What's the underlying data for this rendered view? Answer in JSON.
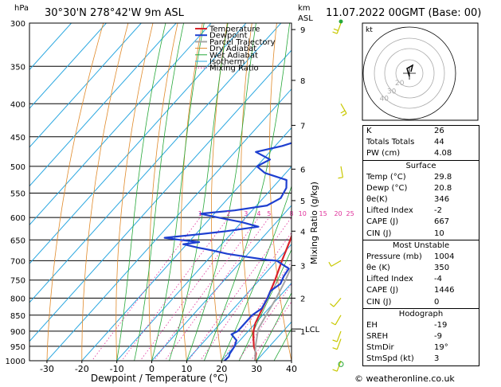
{
  "header": {
    "location": "30°30'N 278°42'W 9m ASL",
    "datetime": "11.07.2022 00GMT (Base: 00)",
    "hpa_label": "hPa",
    "km_label": "km",
    "asl_label": "ASL"
  },
  "chart_data": {
    "type": "line",
    "title": "",
    "xlabel": "Dewpoint / Temperature (°C)",
    "ylabel_right": "Mixing Ratio (g/kg)",
    "xlim": [
      -35,
      40
    ],
    "ylim": [
      1000,
      300
    ],
    "pressure_ticks": [
      300,
      350,
      400,
      450,
      500,
      550,
      600,
      650,
      700,
      750,
      800,
      850,
      900,
      950,
      1000
    ],
    "temp_ticks": [
      -30,
      -20,
      -10,
      0,
      10,
      20,
      30,
      40
    ],
    "km_ticks": [
      {
        "label": "9",
        "p": 307
      },
      {
        "label": "8",
        "p": 368
      },
      {
        "label": "7",
        "p": 432
      },
      {
        "label": "6",
        "p": 505
      },
      {
        "label": "5",
        "p": 565
      },
      {
        "label": "4",
        "p": 630
      },
      {
        "label": "3",
        "p": 712
      },
      {
        "label": "2",
        "p": 800
      },
      {
        "label": "1",
        "p": 900
      }
    ],
    "lcl": {
      "label": "LCL",
      "p": 893
    },
    "mixing_ratio_labels": [
      "1",
      "2",
      "3",
      "4",
      "5",
      "8",
      "10",
      "15",
      "20",
      "25"
    ],
    "mixing_ratio_values": [
      1,
      2,
      3,
      4,
      5,
      8,
      10,
      15,
      20,
      25
    ],
    "legend": [
      "Temperature",
      "Dewpoint",
      "Parcel Trajectory",
      "Dry Adiabat",
      "Wet Adiabat",
      "Isotherm",
      "Mixing Ratio"
    ],
    "series": [
      {
        "name": "Temperature",
        "color": "#d8222a",
        "points": [
          [
            1004,
            29.8
          ],
          [
            975,
            28
          ],
          [
            950,
            25.5
          ],
          [
            925,
            23.5
          ],
          [
            900,
            21.5
          ],
          [
            875,
            20
          ],
          [
            850,
            19
          ],
          [
            800,
            17
          ],
          [
            750,
            14.5
          ],
          [
            700,
            11.5
          ],
          [
            650,
            8.5
          ],
          [
            600,
            5
          ],
          [
            550,
            -0.5
          ],
          [
            500,
            -5
          ],
          [
            450,
            -10.5
          ],
          [
            400,
            -17
          ],
          [
            350,
            -24.5
          ],
          [
            300,
            -33
          ]
        ]
      },
      {
        "name": "Dewpoint",
        "color": "#1e3fd0",
        "points": [
          [
            1004,
            20.8
          ],
          [
            985,
            21
          ],
          [
            975,
            20.5
          ],
          [
            950,
            20
          ],
          [
            930,
            19
          ],
          [
            910,
            16
          ],
          [
            900,
            17
          ],
          [
            880,
            17
          ],
          [
            860,
            17
          ],
          [
            850,
            17
          ],
          [
            830,
            18
          ],
          [
            800,
            17
          ],
          [
            780,
            16
          ],
          [
            760,
            17
          ],
          [
            740,
            16
          ],
          [
            720,
            15.5
          ],
          [
            700,
            10
          ],
          [
            698,
            7
          ],
          [
            690,
            0
          ],
          [
            683,
            -6
          ],
          [
            675,
            -11
          ],
          [
            668,
            -16
          ],
          [
            660,
            -21
          ],
          [
            655,
            -17
          ],
          [
            650,
            -23
          ],
          [
            645,
            -28
          ],
          [
            638,
            -20
          ],
          [
            630,
            -12
          ],
          [
            620,
            -4
          ],
          [
            610,
            -10
          ],
          [
            600,
            -18
          ],
          [
            592,
            -24
          ],
          [
            585,
            -15
          ],
          [
            575,
            -7
          ],
          [
            560,
            -5
          ],
          [
            540,
            -6
          ],
          [
            525,
            -8
          ],
          [
            512,
            -16
          ],
          [
            500,
            -20
          ],
          [
            488,
            -18
          ],
          [
            475,
            -24
          ],
          [
            465,
            -18
          ],
          [
            450,
            -12
          ],
          [
            435,
            -10
          ],
          [
            420,
            -16
          ],
          [
            405,
            -20
          ],
          [
            400,
            -20
          ],
          [
            380,
            -22
          ],
          [
            360,
            -27
          ],
          [
            345,
            -25
          ],
          [
            330,
            -30
          ],
          [
            315,
            -28
          ],
          [
            300,
            -23
          ]
        ]
      },
      {
        "name": "Parcel Trajectory",
        "color": "#a6a6a6",
        "points": [
          [
            1004,
            29.8
          ],
          [
            950,
            26
          ],
          [
            893,
            22.3
          ],
          [
            850,
            21
          ],
          [
            800,
            19.5
          ],
          [
            750,
            17.5
          ],
          [
            700,
            15
          ],
          [
            650,
            12
          ],
          [
            600,
            8.5
          ],
          [
            550,
            4.5
          ],
          [
            500,
            0
          ],
          [
            450,
            -5
          ],
          [
            400,
            -11
          ],
          [
            350,
            -19
          ],
          [
            300,
            -29
          ]
        ]
      }
    ],
    "wind_barbs": [
      {
        "p": 300,
        "dir": 20,
        "spd": 10
      },
      {
        "p": 400,
        "dir": 330,
        "spd": 10
      },
      {
        "p": 500,
        "dir": 350,
        "spd": 5
      },
      {
        "p": 700,
        "dir": 60,
        "spd": 5
      },
      {
        "p": 800,
        "dir": 40,
        "spd": 5
      },
      {
        "p": 850,
        "dir": 30,
        "spd": 5
      },
      {
        "p": 900,
        "dir": 20,
        "spd": 5
      },
      {
        "p": 925,
        "dir": 20,
        "spd": 5
      },
      {
        "p": 1000,
        "dir": 20,
        "spd": 5
      }
    ],
    "colors": {
      "isotherm": "#2aa7e0",
      "dry_adiabat": "#e08a2a",
      "wet_adiabat": "#27a83a",
      "mixing_ratio": "#e0309a",
      "parcel": "#a6a6a6"
    }
  },
  "hodograph": {
    "label": "kt",
    "ring_labels": [
      "40",
      "30",
      "20"
    ]
  },
  "indices": [
    {
      "label": "K",
      "value": "26"
    },
    {
      "label": "Totals Totals",
      "value": "44"
    },
    {
      "label": "PW (cm)",
      "value": "4.08"
    }
  ],
  "surface": {
    "title": "Surface",
    "rows": [
      {
        "label": "Temp (°C)",
        "value": "29.8"
      },
      {
        "label": "Dewp (°C)",
        "value": "20.8"
      },
      {
        "label": "θe(K)",
        "value": "346"
      },
      {
        "label": "Lifted Index",
        "value": "-2"
      },
      {
        "label": "CAPE (J)",
        "value": "667"
      },
      {
        "label": "CIN (J)",
        "value": "10"
      }
    ]
  },
  "most_unstable": {
    "title": "Most Unstable",
    "rows": [
      {
        "label": "Pressure (mb)",
        "value": "1004"
      },
      {
        "label": "θe (K)",
        "value": "350"
      },
      {
        "label": "Lifted Index",
        "value": "-4"
      },
      {
        "label": "CAPE (J)",
        "value": "1446"
      },
      {
        "label": "CIN (J)",
        "value": "0"
      }
    ]
  },
  "hodograph_table": {
    "title": "Hodograph",
    "rows": [
      {
        "label": "EH",
        "value": "-19"
      },
      {
        "label": "SREH",
        "value": "-9"
      },
      {
        "label": "StmDir",
        "value": "19°"
      },
      {
        "label": "StmSpd (kt)",
        "value": "3"
      }
    ]
  },
  "footer": "© weatheronline.co.uk"
}
